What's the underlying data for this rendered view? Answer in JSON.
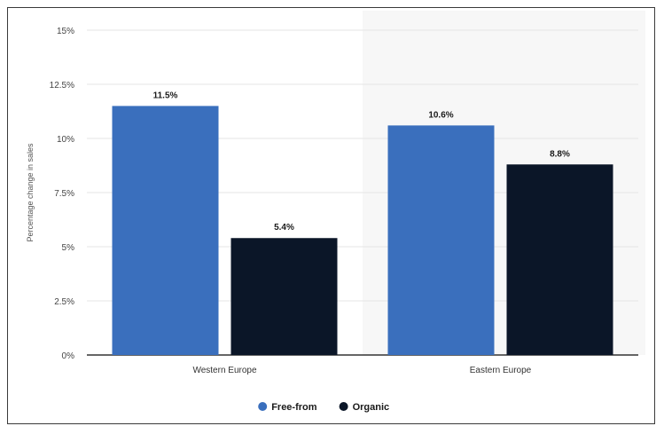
{
  "chart_data": {
    "type": "bar",
    "title": "",
    "xlabel": "",
    "ylabel": "Percentage change in sales",
    "categories": [
      "Western Europe",
      "Eastern Europe"
    ],
    "series": [
      {
        "name": "Free-from",
        "values": [
          11.5,
          10.6
        ],
        "labels": [
          "11.5%",
          "10.6%"
        ],
        "color": "#3a6fbd"
      },
      {
        "name": "Organic",
        "values": [
          5.4,
          8.8
        ],
        "labels": [
          "5.4%",
          "8.8%"
        ],
        "color": "#0b1628"
      }
    ],
    "ylim": [
      0,
      15
    ],
    "yticks": [
      0,
      2.5,
      5,
      7.5,
      10,
      12.5,
      15
    ],
    "ytick_labels": [
      "0%",
      "2.5%",
      "5%",
      "7.5%",
      "10%",
      "12.5%",
      "15%"
    ],
    "grid": true,
    "legend_position": "bottom",
    "colors": {
      "free_from": "#3a6fbd",
      "organic": "#0b1628",
      "grid": "#e6e6e6",
      "shade": "#f7f7f7"
    }
  }
}
